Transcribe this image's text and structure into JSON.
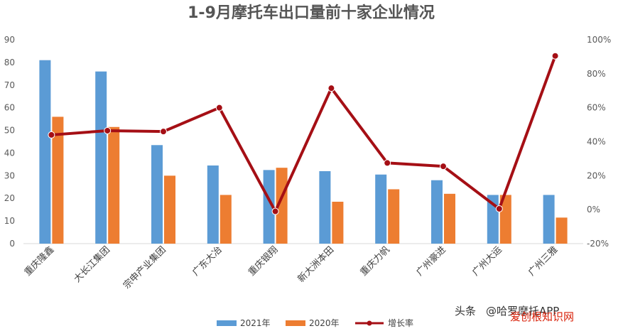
{
  "chart_data": {
    "type": "bar",
    "title": "1-9月摩托车出口量前十家企业情况",
    "categories": [
      "重庆隆鑫",
      "大长江集团",
      "宗申产业集团",
      "广东大冶",
      "重庆银翔",
      "新大洲本田",
      "重庆力帆",
      "广州豪进",
      "广州大运",
      "广州三雅"
    ],
    "series": [
      {
        "name": "2021年",
        "kind": "bar",
        "axis": "left",
        "color": "#5b9bd5",
        "values": [
          81,
          76,
          43.5,
          34.5,
          32.5,
          32,
          30.5,
          28,
          21.5,
          21.5
        ]
      },
      {
        "name": "2020年",
        "kind": "bar",
        "axis": "left",
        "color": "#ed7d31",
        "values": [
          56,
          51.5,
          30,
          21.5,
          33.5,
          18.5,
          24,
          22,
          21.5,
          11.5
        ]
      },
      {
        "name": "增长率",
        "kind": "line",
        "axis": "right",
        "color": "#a50f15",
        "values": [
          44,
          46.5,
          46,
          60,
          -1,
          71.5,
          27.5,
          25.5,
          0.5,
          90.5
        ]
      }
    ],
    "y_left": {
      "min": 0,
      "max": 90,
      "step": 10,
      "ticks": [
        "0",
        "10",
        "20",
        "30",
        "40",
        "50",
        "60",
        "70",
        "80",
        "90"
      ]
    },
    "y_right": {
      "min": -20,
      "max": 100,
      "step": 20,
      "ticks": [
        "-20%",
        "0%",
        "20%",
        "40%",
        "60%",
        "80%",
        "100%"
      ]
    },
    "grid": false,
    "legend_position": "bottom"
  },
  "watermark": {
    "prefix": "头条",
    "handle": "@哈罗摩托APP",
    "overlay": "爱创根知识网"
  }
}
